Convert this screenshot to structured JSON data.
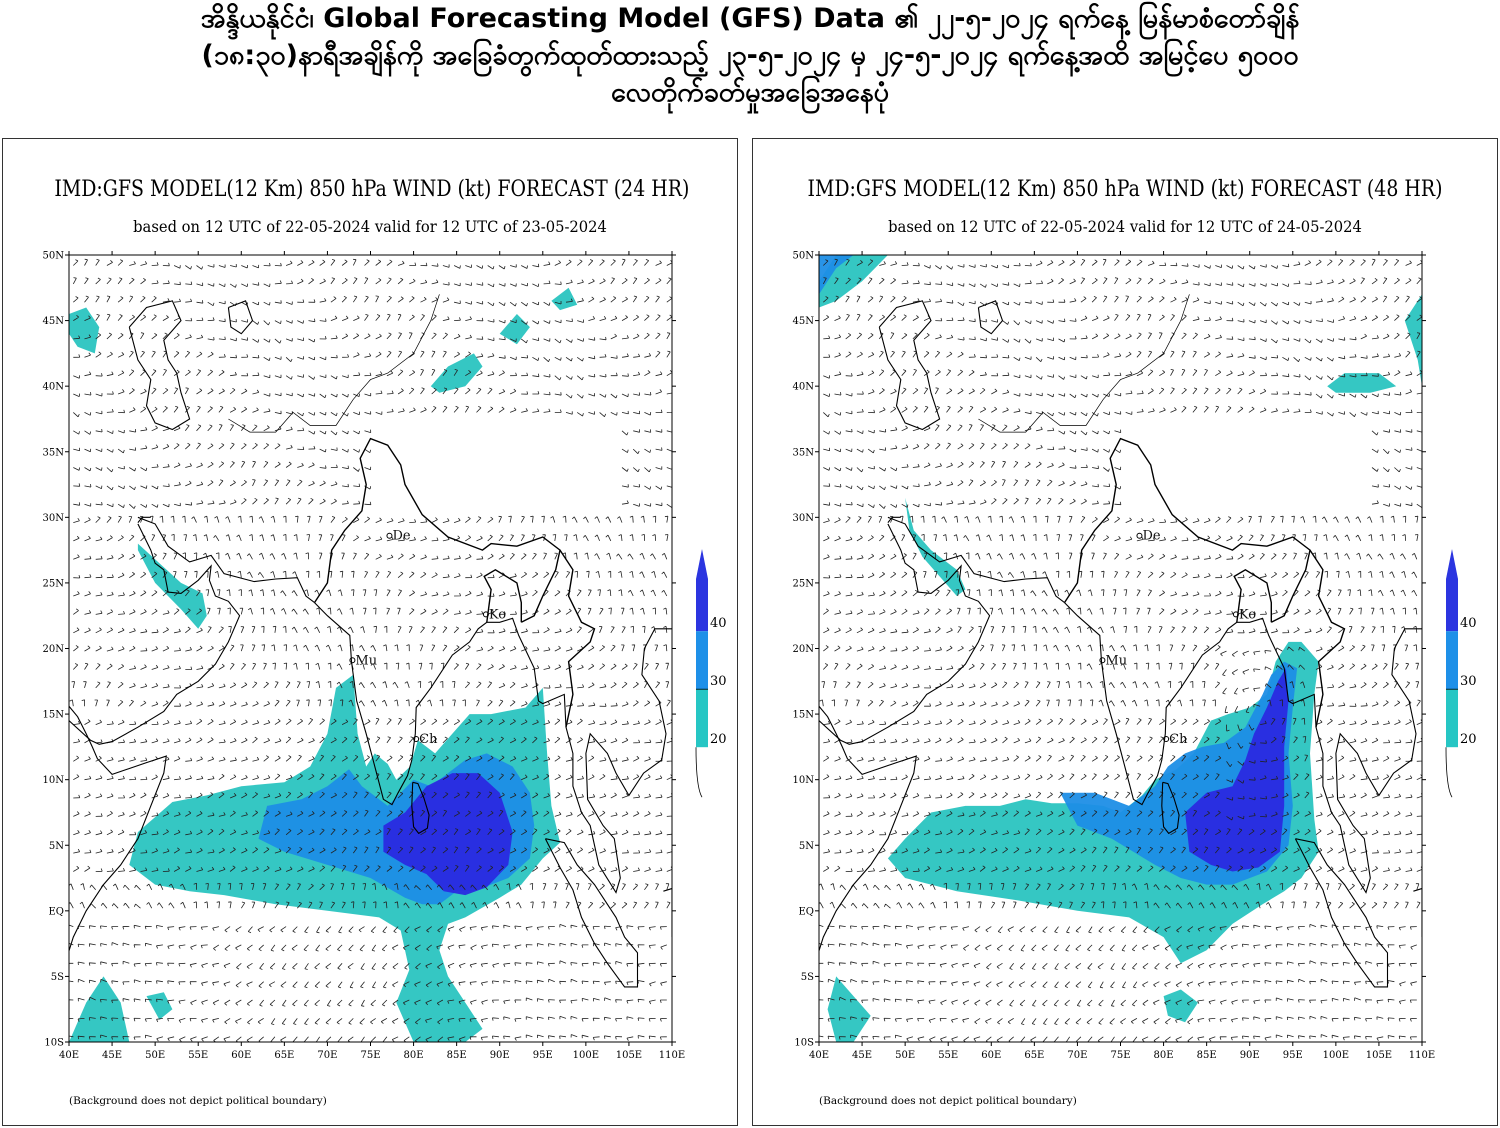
{
  "header": {
    "lines": [
      "အိန္ဒိယနိုင်ငံ၊ Global Forecasting Model (GFS) Data ၏  ၂၂-၅-၂၀၂၄ ရက်နေ့ မြန်မာစံတော်ချိန်",
      "(၁၈:၃၀)နာရီအချိန်ကို အခြေခံတွက်ထုတ်ထားသည့် ၂၃-၅-၂၀၂၄ မှ ၂၄-၅-၂၀၂၄ ရက်နေ့အထိ အမြင့်ပေ ၅၀၀၀",
      "လေတိုက်ခတ်မှုအခြေအနေပုံ"
    ]
  },
  "panels": [
    {
      "title": "IMD:GFS MODEL(12 Km) 850 hPa WIND (kt) FORECAST (24 HR)",
      "subtitle": "based on 12 UTC of 22-05-2024 valid for 12 UTC of 23-05-2024",
      "note": "(Background does not depict political boundary)",
      "forecast_hr": 24
    },
    {
      "title": "IMD:GFS MODEL(12 Km) 850 hPa WIND (kt) FORECAST (48 HR)",
      "subtitle": "based on 12 UTC of 22-05-2024 valid for 12 UTC of 24-05-2024",
      "note": "(Background does not depict political boundary)",
      "forecast_hr": 48
    }
  ],
  "map": {
    "lat_labels": [
      "50N",
      "45N",
      "40N",
      "35N",
      "30N",
      "25N",
      "20N",
      "15N",
      "10N",
      "5N",
      "EQ",
      "5S",
      "10S"
    ],
    "lon_labels": [
      "40E",
      "45E",
      "50E",
      "55E",
      "60E",
      "65E",
      "70E",
      "75E",
      "80E",
      "85E",
      "90E",
      "95E",
      "100E",
      "105E",
      "110E"
    ],
    "lat_range": [
      -10,
      50
    ],
    "lon_range": [
      40,
      110
    ],
    "cities": [
      {
        "label": "De",
        "lon": 77.2,
        "lat": 28.6
      },
      {
        "label": "Ko",
        "lon": 88.4,
        "lat": 22.6
      },
      {
        "label": "Mu",
        "lon": 72.9,
        "lat": 19.1
      },
      {
        "label": "Ch",
        "lon": 80.3,
        "lat": 13.1
      }
    ]
  },
  "legend": {
    "labels": [
      "40",
      "30",
      "20"
    ],
    "colors": [
      "#2b35e0",
      "#1e90e8",
      "#26c6c4"
    ]
  },
  "colors": {
    "shade_20_30": "#2ac4c0",
    "shade_30_40": "#1e8ee6",
    "shade_40_plus": "#2a2ae0",
    "land_fill": "#ffffff",
    "barb": "#222222"
  }
}
